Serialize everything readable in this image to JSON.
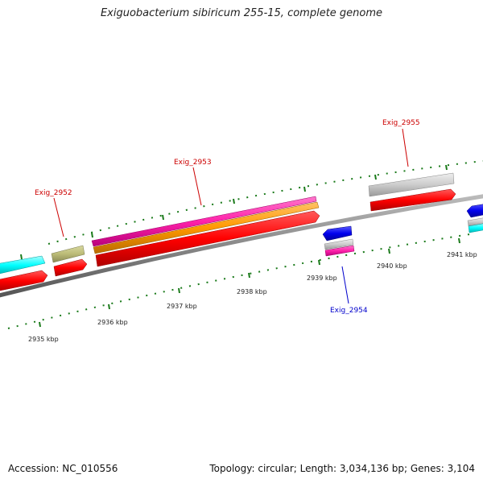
{
  "title": "Exiguobacterium sibiricum 255-15, complete genome",
  "footer": {
    "accession": "Accession: NC_010556",
    "topology": "Topology: circular; Length: 3,034,136 bp; Genes: 3,104"
  },
  "scale_labels": [
    "2935 kbp",
    "2936 kbp",
    "2937 kbp",
    "2938 kbp",
    "2939 kbp",
    "2940 kbp",
    "2941 kbp"
  ],
  "gene_labels": [
    {
      "id": "exig-2952",
      "text": "Exig_2952",
      "color": "#cc0000"
    },
    {
      "id": "exig-2953",
      "text": "Exig_2953",
      "color": "#cc0000"
    },
    {
      "id": "exig-2954",
      "text": "Exig_2954",
      "color": "#0000cc"
    },
    {
      "id": "exig-2955",
      "text": "Exig_2955",
      "color": "#cc0000"
    }
  ],
  "colors": {
    "backbone": "#888888",
    "cds_forward": "#ff0000",
    "cds_reverse": "#0000ee",
    "rrna": "#00ffff",
    "trna": "#bbbb77",
    "feature_pink": "#ff22aa",
    "feature_orange": "#ff9900",
    "feature_grey": "#c8c8c8",
    "tick": "#1a7a1a"
  }
}
